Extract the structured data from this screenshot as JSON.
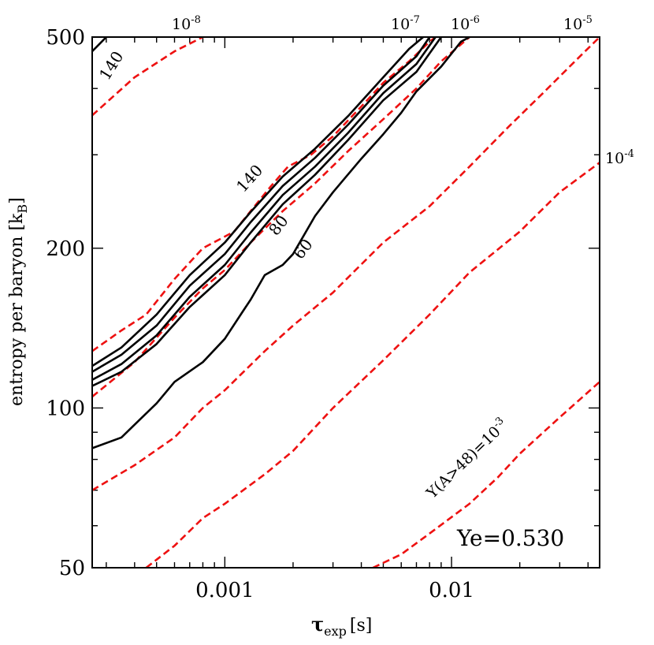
{
  "chart_data": {
    "type": "line",
    "title": "",
    "annotation": "Ye=0.530",
    "xlabel": "τ",
    "xlabel_sub": "exp",
    "xlabel_unit": "[s]",
    "ylabel": "entropy per baryon [k",
    "ylabel_sub": "B",
    "ylabel_close": "]",
    "x_scale": "log",
    "y_scale": "log",
    "xlim": [
      0.00026,
      0.045
    ],
    "ylim": [
      50,
      500
    ],
    "x_ticks": [
      {
        "value": 0.001,
        "label": "0.001"
      },
      {
        "value": 0.01,
        "label": "0.01"
      }
    ],
    "y_ticks": [
      {
        "value": 50,
        "label": "50"
      },
      {
        "value": 100,
        "label": "100"
      },
      {
        "value": 200,
        "label": "200"
      },
      {
        "value": 500,
        "label": "500"
      }
    ],
    "red_dashed_series": [
      {
        "name": "Y(A>48)=1e-8",
        "label_base": "10",
        "label_exp": "-8",
        "color": "#ee1111",
        "points": [
          [
            0.00026,
            356
          ],
          [
            0.0004,
            420
          ],
          [
            0.0006,
            470
          ],
          [
            0.0008,
            500
          ]
        ]
      },
      {
        "name": "Y(A>48)=1e-7",
        "label_base": "10",
        "label_exp": "-7",
        "color": "#ee1111",
        "points": [
          [
            0.00026,
            128
          ],
          [
            0.00035,
            140
          ],
          [
            0.00045,
            150
          ],
          [
            0.0006,
            175
          ],
          [
            0.0008,
            200
          ],
          [
            0.0011,
            215
          ],
          [
            0.0013,
            235
          ],
          [
            0.0016,
            262
          ],
          [
            0.0019,
            285
          ],
          [
            0.0024,
            300
          ],
          [
            0.003,
            325
          ],
          [
            0.004,
            370
          ],
          [
            0.005,
            410
          ],
          [
            0.0065,
            450
          ],
          [
            0.008,
            490
          ],
          [
            0.0085,
            500
          ]
        ]
      },
      {
        "name": "Y(A>48)=1e-6",
        "label_base": "10",
        "label_exp": "-6",
        "color": "#ee1111",
        "points": [
          [
            0.00026,
            105
          ],
          [
            0.0004,
            122
          ],
          [
            0.0006,
            148
          ],
          [
            0.0008,
            168
          ],
          [
            0.001,
            182
          ],
          [
            0.0013,
            205
          ],
          [
            0.0018,
            235
          ],
          [
            0.0025,
            265
          ],
          [
            0.0035,
            305
          ],
          [
            0.005,
            350
          ],
          [
            0.007,
            400
          ],
          [
            0.009,
            450
          ],
          [
            0.012,
            500
          ]
        ]
      },
      {
        "name": "Y(A>48)=1e-5",
        "label_base": "10",
        "label_exp": "-5",
        "color": "#ee1111",
        "points": [
          [
            0.00026,
            70
          ],
          [
            0.0004,
            78
          ],
          [
            0.0006,
            88
          ],
          [
            0.0008,
            100
          ],
          [
            0.001,
            108
          ],
          [
            0.0015,
            128
          ],
          [
            0.002,
            143
          ],
          [
            0.003,
            165
          ],
          [
            0.005,
            205
          ],
          [
            0.008,
            240
          ],
          [
            0.012,
            285
          ],
          [
            0.018,
            340
          ],
          [
            0.025,
            390
          ],
          [
            0.035,
            450
          ],
          [
            0.045,
            500
          ]
        ]
      },
      {
        "name": "Y(A>48)=1e-4",
        "label_base": "10",
        "label_exp": "-4",
        "color": "#ee1111",
        "points": [
          [
            0.00045,
            50
          ],
          [
            0.0006,
            55
          ],
          [
            0.0008,
            62
          ],
          [
            0.001,
            66
          ],
          [
            0.0015,
            75
          ],
          [
            0.002,
            83
          ],
          [
            0.003,
            100
          ],
          [
            0.005,
            123
          ],
          [
            0.008,
            150
          ],
          [
            0.012,
            180
          ],
          [
            0.02,
            215
          ],
          [
            0.03,
            255
          ],
          [
            0.045,
            290
          ]
        ]
      },
      {
        "name": "Y(A>48)=1e-3",
        "label": "Y(A>48)=10",
        "label_exp": "-3",
        "color": "#ee1111",
        "points": [
          [
            0.0045,
            50
          ],
          [
            0.006,
            53
          ],
          [
            0.008,
            58
          ],
          [
            0.012,
            66
          ],
          [
            0.016,
            74
          ],
          [
            0.02,
            82
          ],
          [
            0.03,
            96
          ],
          [
            0.045,
            112
          ]
        ]
      }
    ],
    "black_contours": [
      {
        "name": "contour-60",
        "label": "60",
        "points": [
          [
            0.00026,
            84
          ],
          [
            0.00035,
            88
          ],
          [
            0.0004,
            93
          ],
          [
            0.0005,
            102
          ],
          [
            0.0006,
            112
          ],
          [
            0.0008,
            122
          ],
          [
            0.001,
            135
          ],
          [
            0.0012,
            152
          ],
          [
            0.0013,
            160
          ],
          [
            0.0015,
            178
          ],
          [
            0.0018,
            186
          ],
          [
            0.002,
            195
          ],
          [
            0.0025,
            230
          ],
          [
            0.003,
            255
          ],
          [
            0.004,
            295
          ],
          [
            0.005,
            328
          ],
          [
            0.006,
            360
          ],
          [
            0.007,
            395
          ],
          [
            0.009,
            440
          ],
          [
            0.011,
            490
          ],
          [
            0.012,
            500
          ]
        ]
      },
      {
        "name": "contour-80",
        "label": "80",
        "points": [
          [
            0.00026,
            110
          ],
          [
            0.00035,
            117
          ],
          [
            0.0005,
            132
          ],
          [
            0.0007,
            155
          ],
          [
            0.001,
            178
          ],
          [
            0.0013,
            205
          ],
          [
            0.0018,
            242
          ],
          [
            0.0025,
            275
          ],
          [
            0.0035,
            320
          ],
          [
            0.005,
            380
          ],
          [
            0.007,
            430
          ],
          [
            0.009,
            500
          ]
        ]
      },
      {
        "name": "contour-100",
        "label": "",
        "points": [
          [
            0.00026,
            113
          ],
          [
            0.00035,
            121
          ],
          [
            0.0005,
            137
          ],
          [
            0.0007,
            162
          ],
          [
            0.001,
            186
          ],
          [
            0.0013,
            214
          ],
          [
            0.0018,
            252
          ],
          [
            0.0025,
            285
          ],
          [
            0.0035,
            330
          ],
          [
            0.005,
            392
          ],
          [
            0.007,
            445
          ],
          [
            0.0085,
            500
          ]
        ]
      },
      {
        "name": "contour-120",
        "label": "",
        "points": [
          [
            0.00026,
            117
          ],
          [
            0.00035,
            126
          ],
          [
            0.0005,
            143
          ],
          [
            0.0007,
            170
          ],
          [
            0.001,
            195
          ],
          [
            0.0013,
            224
          ],
          [
            0.0018,
            262
          ],
          [
            0.0025,
            296
          ],
          [
            0.0035,
            342
          ],
          [
            0.005,
            405
          ],
          [
            0.007,
            460
          ],
          [
            0.008,
            500
          ]
        ]
      },
      {
        "name": "contour-140",
        "label": "140",
        "points": [
          [
            0.00026,
            120
          ],
          [
            0.00035,
            130
          ],
          [
            0.0005,
            150
          ],
          [
            0.0007,
            178
          ],
          [
            0.001,
            205
          ],
          [
            0.0013,
            234
          ],
          [
            0.0018,
            273
          ],
          [
            0.0025,
            308
          ],
          [
            0.0035,
            355
          ],
          [
            0.005,
            420
          ],
          [
            0.0065,
            475
          ],
          [
            0.0075,
            500
          ]
        ]
      },
      {
        "name": "contour-140-corner",
        "label": "140",
        "points": [
          [
            0.00026,
            470
          ],
          [
            0.0003,
            500
          ]
        ]
      }
    ]
  }
}
